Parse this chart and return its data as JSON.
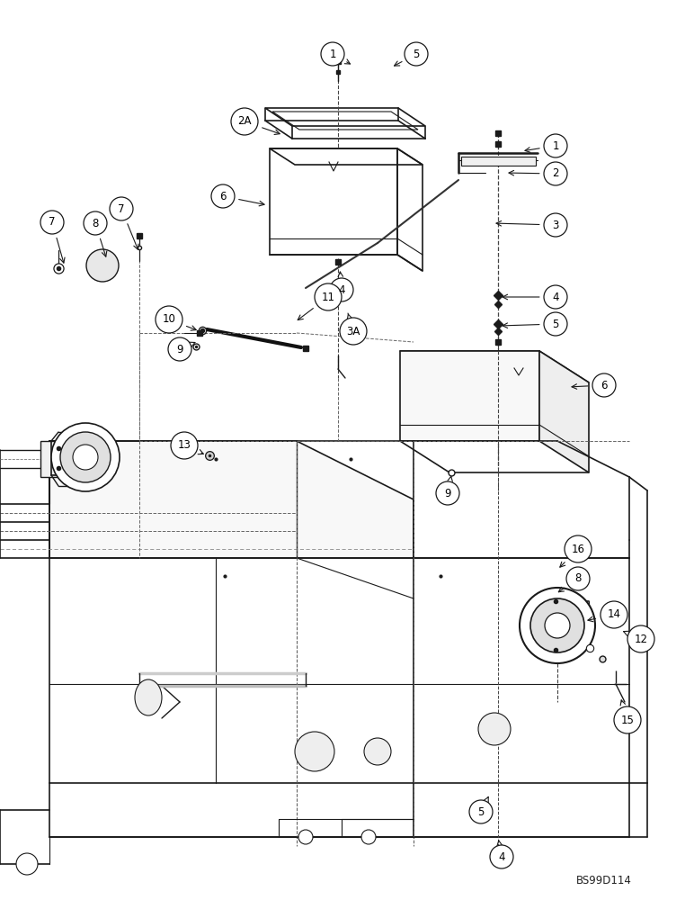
{
  "fig_width": 7.72,
  "fig_height": 10.0,
  "dpi": 100,
  "bg_color": "#ffffff",
  "lc": "#1a1a1a",
  "watermark": "BS99D114",
  "callouts": [
    [
      "1",
      370,
      60,
      393,
      73
    ],
    [
      "5",
      463,
      60,
      435,
      75
    ],
    [
      "2A",
      272,
      135,
      315,
      150
    ],
    [
      "6",
      248,
      218,
      298,
      228
    ],
    [
      "4",
      380,
      322,
      378,
      298
    ],
    [
      "11",
      365,
      330,
      328,
      358
    ],
    [
      "3A",
      393,
      368,
      387,
      348
    ],
    [
      "10",
      188,
      355,
      222,
      368
    ],
    [
      "9",
      200,
      388,
      218,
      380
    ],
    [
      "7",
      58,
      247,
      72,
      296
    ],
    [
      "7",
      135,
      232,
      155,
      281
    ],
    [
      "8",
      106,
      248,
      119,
      289
    ],
    [
      "13",
      205,
      495,
      230,
      506
    ],
    [
      "1",
      618,
      162,
      580,
      168
    ],
    [
      "2",
      618,
      193,
      562,
      192
    ],
    [
      "3",
      618,
      250,
      548,
      248
    ],
    [
      "4",
      618,
      330,
      555,
      330
    ],
    [
      "5",
      618,
      360,
      555,
      362
    ],
    [
      "6",
      672,
      428,
      632,
      430
    ],
    [
      "9",
      498,
      548,
      502,
      528
    ],
    [
      "16",
      643,
      610,
      620,
      633
    ],
    [
      "8",
      643,
      643,
      618,
      660
    ],
    [
      "14",
      683,
      683,
      650,
      690
    ],
    [
      "12",
      713,
      710,
      690,
      700
    ],
    [
      "15",
      698,
      800,
      690,
      774
    ],
    [
      "5",
      535,
      902,
      545,
      882
    ],
    [
      "4",
      558,
      952,
      554,
      930
    ]
  ]
}
